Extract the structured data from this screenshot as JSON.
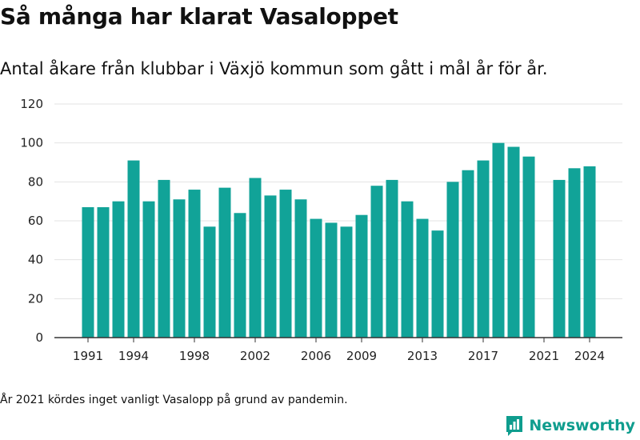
{
  "title": "Så många har klarat Vasaloppet",
  "subtitle": "Antal åkare från klubbar i Växjö kommun som gått i mål år för år.",
  "footnote": "År 2021 kördes inget vanligt Vasalopp på grund av pandemin.",
  "brand": {
    "name": "Newsworthy",
    "logo_icon": "newsworthy-logo-icon"
  },
  "colors": {
    "bar": "#11a398",
    "grid": "#e3e3e3",
    "axis": "#333333",
    "brand": "#0f9d8e"
  },
  "chart_data": {
    "type": "bar",
    "x": [
      1991,
      1992,
      1993,
      1994,
      1995,
      1996,
      1997,
      1998,
      1999,
      2000,
      2001,
      2002,
      2003,
      2004,
      2005,
      2006,
      2007,
      2008,
      2009,
      2010,
      2011,
      2012,
      2013,
      2014,
      2015,
      2016,
      2017,
      2018,
      2019,
      2020,
      2021,
      2022,
      2023,
      2024
    ],
    "values": [
      67,
      67,
      70,
      91,
      70,
      81,
      71,
      76,
      57,
      77,
      64,
      82,
      73,
      76,
      71,
      61,
      59,
      57,
      63,
      78,
      81,
      70,
      61,
      55,
      80,
      86,
      91,
      100,
      98,
      93,
      null,
      81,
      87,
      88
    ],
    "x_tick_labels": [
      "1991",
      "1994",
      "1998",
      "2002",
      "2006",
      "2009",
      "2013",
      "2017",
      "2021",
      "2024"
    ],
    "y_ticks": [
      0,
      20,
      40,
      60,
      80,
      100,
      120
    ],
    "ylim": [
      0,
      120
    ],
    "grid": true,
    "title": "Så många har klarat Vasaloppet",
    "xlabel": "",
    "ylabel": ""
  }
}
